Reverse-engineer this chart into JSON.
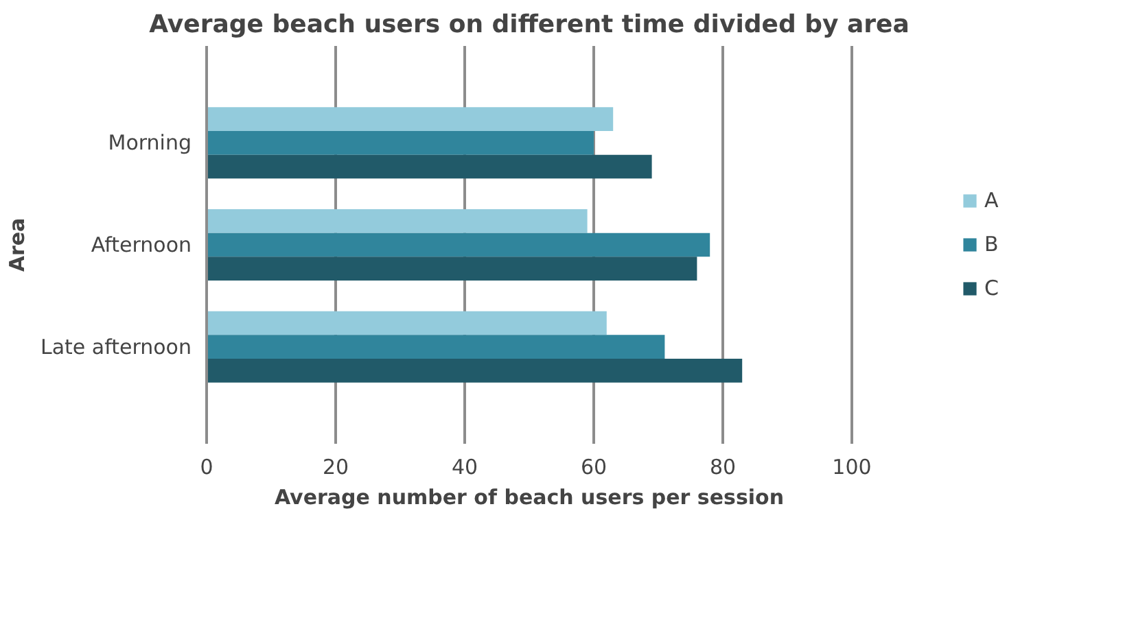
{
  "chart_data": {
    "type": "bar",
    "orientation": "horizontal",
    "title": "Average beach users on different time divided by area",
    "xlabel": "Average number of beach users per session",
    "ylabel": "Area",
    "categories": [
      "Morning",
      "Afternoon",
      "Late afternoon"
    ],
    "series": [
      {
        "name": "A",
        "color": "#93cbdc",
        "values": [
          63,
          59,
          62
        ]
      },
      {
        "name": "B",
        "color": "#30859c",
        "values": [
          60,
          78,
          71
        ]
      },
      {
        "name": "C",
        "color": "#215a69",
        "values": [
          69,
          76,
          83
        ]
      }
    ],
    "xlim": [
      0,
      100
    ],
    "xticks": [
      0,
      20,
      40,
      60,
      80,
      100
    ],
    "grid": "x",
    "legend": "right"
  }
}
